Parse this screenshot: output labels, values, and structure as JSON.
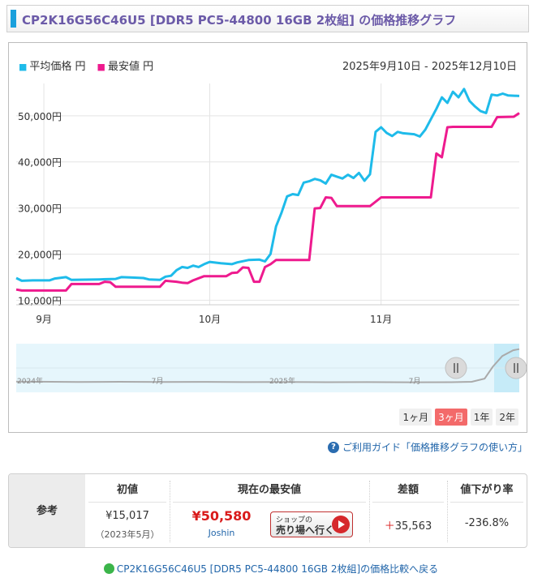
{
  "title": "CP2K16G56C46U5 [DDR5 PC5-44800 16GB 2枚組] の価格推移グラフ",
  "legend": {
    "avg_label": "平均価格 円",
    "min_label": "最安値 円"
  },
  "date_range": "2025年9月10日 - 2025年12月10日",
  "colors": {
    "accent": "#1aa0dc",
    "avg": "#1ebbea",
    "min": "#ee1a8e",
    "title": "#6b5aa8",
    "active_btn": "#f36a6a"
  },
  "navigator": {
    "year_labels": [
      "2024年",
      "7月",
      "2025年",
      "7月"
    ]
  },
  "range_buttons": [
    "1ヶ月",
    "3ヶ月",
    "1年",
    "2年"
  ],
  "active_range": "3ヶ月",
  "guide": {
    "icon": "question-icon",
    "text": "ご利用ガイド「価格推移グラフの使い方」"
  },
  "reference": {
    "row_header": "参考",
    "initial": {
      "header": "初値",
      "value": "¥15,017",
      "note": "（2023年5月）"
    },
    "current_min": {
      "header": "現在の最安値",
      "value": "¥50,580",
      "shop": "Joshin",
      "button_small": "ショップの",
      "button_big": "売り場へ行く"
    },
    "diff": {
      "header": "差額",
      "sign": "＋",
      "value": "35,563"
    },
    "drop_rate": {
      "header": "値下がり率",
      "value": "-236.8%"
    }
  },
  "back_link": {
    "icon": "green-circle-icon",
    "text": "CP2K16G56C46U5 [DDR5 PC5-44800 16GB 2枚組]の価格比較へ戻る"
  },
  "chart_data": {
    "type": "line",
    "title": "CP2K16G56C46U5 [DDR5 PC5-44800 16GB 2枚組] の価格推移グラフ",
    "x_label": "",
    "y_label": "",
    "x_start": "2025-09-10",
    "x_end": "2025-12-10",
    "x_tick_labels": [
      "9月",
      "10月",
      "11月"
    ],
    "x_tick_dates": [
      "2025-09-15",
      "2025-10-15",
      "2025-11-15"
    ],
    "y_tick_labels": [
      "10,000円",
      "20,000円",
      "30,000円",
      "40,000円",
      "50,000円"
    ],
    "y_ticks": [
      10000,
      20000,
      30000,
      40000,
      50000
    ],
    "ylim": [
      9000,
      57000
    ],
    "grid": true,
    "legend_position": "top-left",
    "series": [
      {
        "name": "平均価格 円",
        "color": "#1ebbea",
        "points": [
          [
            "2025-09-10",
            14800
          ],
          [
            "2025-09-11",
            14200
          ],
          [
            "2025-09-13",
            14300
          ],
          [
            "2025-09-16",
            14300
          ],
          [
            "2025-09-17",
            14700
          ],
          [
            "2025-09-19",
            15000
          ],
          [
            "2025-09-20",
            14400
          ],
          [
            "2025-09-25",
            14500
          ],
          [
            "2025-09-28",
            14600
          ],
          [
            "2025-09-29",
            15000
          ],
          [
            "2025-10-01",
            14900
          ],
          [
            "2025-10-03",
            14800
          ],
          [
            "2025-10-04",
            14500
          ],
          [
            "2025-10-06",
            14400
          ],
          [
            "2025-10-07",
            15100
          ],
          [
            "2025-10-08",
            15300
          ],
          [
            "2025-10-09",
            16500
          ],
          [
            "2025-10-10",
            17200
          ],
          [
            "2025-10-11",
            17000
          ],
          [
            "2025-10-12",
            17500
          ],
          [
            "2025-10-13",
            17200
          ],
          [
            "2025-10-14",
            17800
          ],
          [
            "2025-10-15",
            18300
          ],
          [
            "2025-10-17",
            18000
          ],
          [
            "2025-10-19",
            17800
          ],
          [
            "2025-10-20",
            18200
          ],
          [
            "2025-10-22",
            18700
          ],
          [
            "2025-10-24",
            18800
          ],
          [
            "2025-10-25",
            18400
          ],
          [
            "2025-10-26",
            20000
          ],
          [
            "2025-10-27",
            26000
          ],
          [
            "2025-10-28",
            29000
          ],
          [
            "2025-10-29",
            32500
          ],
          [
            "2025-10-30",
            33000
          ],
          [
            "2025-10-31",
            32800
          ],
          [
            "2025-11-01",
            35500
          ],
          [
            "2025-11-02",
            35800
          ],
          [
            "2025-11-03",
            36300
          ],
          [
            "2025-11-04",
            36000
          ],
          [
            "2025-11-05",
            35300
          ],
          [
            "2025-11-06",
            37200
          ],
          [
            "2025-11-07",
            36800
          ],
          [
            "2025-11-08",
            36400
          ],
          [
            "2025-11-09",
            37200
          ],
          [
            "2025-11-10",
            36500
          ],
          [
            "2025-11-11",
            37600
          ],
          [
            "2025-11-12",
            35900
          ],
          [
            "2025-11-13",
            37300
          ],
          [
            "2025-11-14",
            46500
          ],
          [
            "2025-11-15",
            47500
          ],
          [
            "2025-11-16",
            46300
          ],
          [
            "2025-11-17",
            45600
          ],
          [
            "2025-11-18",
            46500
          ],
          [
            "2025-11-19",
            46200
          ],
          [
            "2025-11-20",
            46100
          ],
          [
            "2025-11-21",
            46000
          ],
          [
            "2025-11-22",
            45500
          ],
          [
            "2025-11-23",
            47000
          ],
          [
            "2025-11-25",
            51500
          ],
          [
            "2025-11-26",
            54000
          ],
          [
            "2025-11-27",
            52800
          ],
          [
            "2025-11-28",
            55200
          ],
          [
            "2025-11-29",
            54000
          ],
          [
            "2025-11-30",
            55800
          ],
          [
            "2025-12-01",
            53200
          ],
          [
            "2025-12-02",
            52000
          ],
          [
            "2025-12-03",
            51000
          ],
          [
            "2025-12-04",
            50600
          ],
          [
            "2025-12-05",
            54600
          ],
          [
            "2025-12-06",
            54400
          ],
          [
            "2025-12-07",
            54800
          ],
          [
            "2025-12-08",
            54400
          ],
          [
            "2025-12-10",
            54300
          ]
        ]
      },
      {
        "name": "最安値 円",
        "color": "#ee1a8e",
        "points": [
          [
            "2025-09-10",
            12300
          ],
          [
            "2025-09-11",
            12100
          ],
          [
            "2025-09-19",
            12100
          ],
          [
            "2025-09-20",
            13500
          ],
          [
            "2025-09-25",
            13500
          ],
          [
            "2025-09-26",
            14000
          ],
          [
            "2025-09-27",
            13900
          ],
          [
            "2025-09-28",
            12900
          ],
          [
            "2025-10-05",
            12900
          ],
          [
            "2025-10-06",
            12900
          ],
          [
            "2025-10-07",
            14200
          ],
          [
            "2025-10-09",
            14000
          ],
          [
            "2025-10-10",
            13800
          ],
          [
            "2025-10-11",
            13700
          ],
          [
            "2025-10-12",
            14300
          ],
          [
            "2025-10-14",
            15200
          ],
          [
            "2025-10-18",
            15200
          ],
          [
            "2025-10-19",
            15900
          ],
          [
            "2025-10-20",
            16000
          ],
          [
            "2025-10-21",
            17100
          ],
          [
            "2025-10-22",
            17000
          ],
          [
            "2025-10-23",
            14000
          ],
          [
            "2025-10-24",
            14000
          ],
          [
            "2025-10-25",
            17200
          ],
          [
            "2025-10-26",
            17800
          ],
          [
            "2025-10-27",
            18700
          ],
          [
            "2025-11-02",
            18700
          ],
          [
            "2025-11-03",
            29900
          ],
          [
            "2025-11-04",
            30000
          ],
          [
            "2025-11-05",
            32300
          ],
          [
            "2025-11-06",
            32200
          ],
          [
            "2025-11-07",
            30400
          ],
          [
            "2025-11-13",
            30400
          ],
          [
            "2025-11-15",
            32300
          ],
          [
            "2025-11-20",
            32300
          ],
          [
            "2025-11-24",
            32300
          ],
          [
            "2025-11-25",
            41800
          ],
          [
            "2025-11-26",
            41000
          ],
          [
            "2025-11-27",
            47500
          ],
          [
            "2025-11-28",
            47600
          ],
          [
            "2025-12-05",
            47600
          ],
          [
            "2025-12-06",
            49700
          ],
          [
            "2025-12-09",
            49800
          ],
          [
            "2025-12-10",
            50580
          ]
        ]
      }
    ],
    "navigator_series": [
      [
        "2023-12-01",
        15200
      ],
      [
        "2024-01-01",
        15100
      ],
      [
        "2024-03-01",
        14800
      ],
      [
        "2024-05-01",
        15000
      ],
      [
        "2024-07-01",
        14700
      ],
      [
        "2024-09-01",
        14900
      ],
      [
        "2024-11-01",
        14600
      ],
      [
        "2025-01-01",
        14700
      ],
      [
        "2025-03-01",
        14500
      ],
      [
        "2025-05-01",
        14600
      ],
      [
        "2025-07-01",
        14400
      ],
      [
        "2025-09-01",
        14500
      ],
      [
        "2025-10-01",
        15000
      ],
      [
        "2025-10-20",
        18800
      ],
      [
        "2025-11-01",
        33000
      ],
      [
        "2025-11-15",
        46000
      ],
      [
        "2025-12-01",
        53000
      ],
      [
        "2025-12-10",
        54300
      ]
    ]
  }
}
